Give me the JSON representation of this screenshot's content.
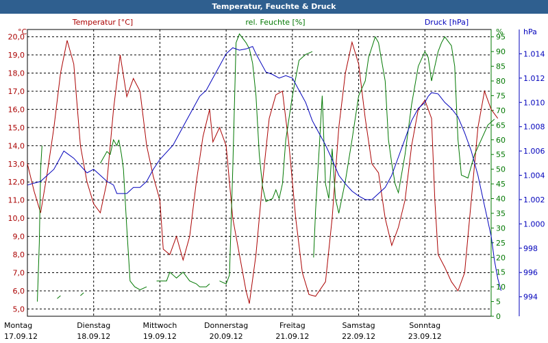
{
  "chart_data": {
    "type": "line",
    "title": "Temperatur, Feuchte & Druck",
    "legend": {
      "temperature": "Temperatur [°C]",
      "humidity": "rel. Feuchte [%]",
      "pressure": "Druck [hPa]"
    },
    "units": {
      "temperature": "°C",
      "humidity": "%",
      "pressure": "hPa"
    },
    "colors": {
      "temperature": "#aa0000",
      "humidity": "#007700",
      "pressure": "#0000bb",
      "grid": "#000000",
      "title_bg": "#2f5f8f"
    },
    "x_range": [
      0,
      7
    ],
    "days": [
      {
        "day": "Montag",
        "date": "17.09.12"
      },
      {
        "day": "Dienstag",
        "date": "18.09.12"
      },
      {
        "day": "Mittwoch",
        "date": "19.09.12"
      },
      {
        "day": "Donnerstag",
        "date": "20.09.12"
      },
      {
        "day": "Freitag",
        "date": "21.09.12"
      },
      {
        "day": "Samstag",
        "date": "22.09.12"
      },
      {
        "day": "Sonntag",
        "date": "23.09.12"
      }
    ],
    "y_left": {
      "min": 4.6,
      "max": 20.4,
      "ticks": [
        "5,0",
        "6,0",
        "7,0",
        "8,0",
        "9,0",
        "10,0",
        "11,0",
        "12,0",
        "13,0",
        "14,0",
        "15,0",
        "16,0",
        "17,0",
        "18,0",
        "19,0",
        "20,0"
      ]
    },
    "y_right1": {
      "min": 0,
      "max": 97.5,
      "ticks": [
        "0",
        "5",
        "10",
        "15",
        "20",
        "25",
        "30",
        "35",
        "40",
        "45",
        "50",
        "55",
        "60",
        "65",
        "70",
        "75",
        "80",
        "85",
        "90",
        "95"
      ]
    },
    "y_right2": {
      "min": 992.4,
      "max": 1016.0,
      "ticks": [
        "994",
        "996",
        "998",
        "1.000",
        "1.002",
        "1.004",
        "1.006",
        "1.008",
        "1.010",
        "1.012",
        "1.014"
      ]
    },
    "series": [
      {
        "name": "Temperatur [°C]",
        "axis": "left",
        "points": [
          [
            0,
            13.0
          ],
          [
            0.1,
            11.5
          ],
          [
            0.2,
            10.3
          ],
          [
            0.3,
            12.5
          ],
          [
            0.4,
            15.0
          ],
          [
            0.5,
            18.0
          ],
          [
            0.6,
            19.8
          ],
          [
            0.7,
            18.5
          ],
          [
            0.8,
            14.0
          ],
          [
            0.9,
            12.0
          ],
          [
            1.0,
            10.8
          ],
          [
            1.1,
            10.3
          ],
          [
            1.2,
            12.0
          ],
          [
            1.3,
            16.0
          ],
          [
            1.4,
            19.0
          ],
          [
            1.5,
            16.7
          ],
          [
            1.6,
            17.7
          ],
          [
            1.7,
            17.0
          ],
          [
            1.8,
            14.0
          ],
          [
            1.9,
            12.3
          ],
          [
            2.0,
            11.0
          ],
          [
            2.05,
            8.3
          ],
          [
            2.15,
            8.0
          ],
          [
            2.25,
            9.0
          ],
          [
            2.35,
            7.7
          ],
          [
            2.45,
            9.0
          ],
          [
            2.55,
            12.0
          ],
          [
            2.65,
            14.5
          ],
          [
            2.75,
            16.0
          ],
          [
            2.8,
            14.2
          ],
          [
            2.9,
            15.0
          ],
          [
            3.0,
            14.0
          ],
          [
            3.1,
            10.0
          ],
          [
            3.2,
            8.0
          ],
          [
            3.3,
            6.0
          ],
          [
            3.35,
            5.3
          ],
          [
            3.45,
            8.0
          ],
          [
            3.55,
            12.0
          ],
          [
            3.65,
            15.5
          ],
          [
            3.75,
            16.8
          ],
          [
            3.85,
            17.0
          ],
          [
            3.95,
            14.0
          ],
          [
            4.05,
            10.0
          ],
          [
            4.15,
            7.0
          ],
          [
            4.25,
            5.8
          ],
          [
            4.35,
            5.7
          ],
          [
            4.5,
            6.5
          ],
          [
            4.6,
            10.0
          ],
          [
            4.7,
            15.0
          ],
          [
            4.8,
            18.0
          ],
          [
            4.9,
            19.7
          ],
          [
            5.0,
            18.5
          ],
          [
            5.1,
            15.5
          ],
          [
            5.2,
            13.0
          ],
          [
            5.3,
            12.5
          ],
          [
            5.4,
            10.0
          ],
          [
            5.5,
            8.5
          ],
          [
            5.6,
            9.5
          ],
          [
            5.7,
            11.0
          ],
          [
            5.8,
            14.0
          ],
          [
            5.9,
            16.0
          ],
          [
            6.0,
            16.5
          ],
          [
            6.1,
            15.5
          ],
          [
            6.15,
            11.0
          ],
          [
            6.2,
            8.0
          ],
          [
            6.3,
            7.3
          ],
          [
            6.4,
            6.5
          ],
          [
            6.5,
            6.0
          ],
          [
            6.6,
            7.0
          ],
          [
            6.7,
            11.0
          ],
          [
            6.8,
            15.0
          ],
          [
            6.9,
            17.0
          ],
          [
            7.0,
            16.0
          ],
          [
            7.1,
            15.5
          ]
        ]
      },
      {
        "name": "rel. Feuchte [%]",
        "axis": "right1",
        "segments": [
          [
            [
              0.15,
              5
            ],
            [
              0.18,
              25
            ],
            [
              0.2,
              50
            ],
            [
              0.22,
              58
            ]
          ],
          [
            [
              0.45,
              6
            ],
            [
              0.5,
              7
            ]
          ],
          [
            [
              0.8,
              7
            ],
            [
              0.85,
              8
            ]
          ],
          [
            [
              1.1,
              52
            ],
            [
              1.2,
              56
            ],
            [
              1.25,
              55
            ],
            [
              1.3,
              60
            ],
            [
              1.35,
              58
            ],
            [
              1.38,
              60
            ],
            [
              1.42,
              55
            ],
            [
              1.45,
              50
            ],
            [
              1.5,
              30
            ],
            [
              1.55,
              12
            ],
            [
              1.62,
              10
            ],
            [
              1.7,
              9
            ],
            [
              1.8,
              10
            ]
          ],
          [
            [
              1.95,
              12
            ],
            [
              2.1,
              12
            ],
            [
              2.15,
              15
            ],
            [
              2.25,
              13
            ],
            [
              2.35,
              15
            ],
            [
              2.45,
              12
            ],
            [
              2.55,
              11
            ],
            [
              2.6,
              10
            ],
            [
              2.7,
              10
            ],
            [
              2.75,
              11
            ]
          ],
          [
            [
              2.9,
              12
            ],
            [
              3.0,
              11
            ],
            [
              3.05,
              14
            ],
            [
              3.1,
              50
            ],
            [
              3.15,
              93
            ],
            [
              3.2,
              96
            ],
            [
              3.3,
              93
            ],
            [
              3.35,
              91
            ],
            [
              3.4,
              86
            ],
            [
              3.45,
              75
            ],
            [
              3.5,
              55
            ],
            [
              3.55,
              44
            ],
            [
              3.6,
              39
            ],
            [
              3.7,
              40
            ],
            [
              3.75,
              43
            ],
            [
              3.8,
              40
            ],
            [
              3.85,
              45
            ],
            [
              3.9,
              60
            ],
            [
              4.0,
              75
            ],
            [
              4.1,
              87
            ],
            [
              4.2,
              89
            ],
            [
              4.3,
              90
            ]
          ],
          [
            [
              4.32,
              20
            ],
            [
              4.35,
              36
            ],
            [
              4.4,
              55
            ],
            [
              4.45,
              75
            ],
            [
              4.5,
              45
            ],
            [
              4.55,
              40
            ],
            [
              4.6,
              57
            ],
            [
              4.65,
              40
            ],
            [
              4.7,
              35
            ],
            [
              4.8,
              46
            ],
            [
              4.9,
              60
            ],
            [
              5.0,
              75
            ],
            [
              5.1,
              80
            ],
            [
              5.15,
              88
            ],
            [
              5.25,
              95
            ],
            [
              5.3,
              93
            ],
            [
              5.4,
              80
            ],
            [
              5.45,
              60
            ],
            [
              5.5,
              52
            ],
            [
              5.55,
              45
            ],
            [
              5.6,
              42
            ],
            [
              5.7,
              55
            ],
            [
              5.8,
              72
            ],
            [
              5.9,
              85
            ],
            [
              6.0,
              90
            ],
            [
              6.05,
              88
            ],
            [
              6.1,
              80
            ],
            [
              6.2,
              90
            ],
            [
              6.25,
              93
            ],
            [
              6.3,
              95
            ],
            [
              6.4,
              92
            ],
            [
              6.45,
              85
            ],
            [
              6.5,
              60
            ],
            [
              6.55,
              48
            ],
            [
              6.65,
              47
            ],
            [
              6.75,
              55
            ],
            [
              6.85,
              60
            ],
            [
              6.95,
              65
            ],
            [
              7.05,
              67
            ]
          ]
        ]
      },
      {
        "name": "Druck [hPa]",
        "axis": "right2",
        "points": [
          [
            0,
            1003.2
          ],
          [
            0.2,
            1003.5
          ],
          [
            0.4,
            1004.5
          ],
          [
            0.5,
            1005.5
          ],
          [
            0.55,
            1006.0
          ],
          [
            0.6,
            1005.8
          ],
          [
            0.7,
            1005.4
          ],
          [
            0.8,
            1004.8
          ],
          [
            0.9,
            1004.2
          ],
          [
            1.0,
            1004.5
          ],
          [
            1.1,
            1004.0
          ],
          [
            1.2,
            1003.5
          ],
          [
            1.3,
            1003.2
          ],
          [
            1.35,
            1002.5
          ],
          [
            1.5,
            1002.5
          ],
          [
            1.6,
            1003.0
          ],
          [
            1.7,
            1003.0
          ],
          [
            1.8,
            1003.5
          ],
          [
            1.9,
            1004.5
          ],
          [
            2.0,
            1005.3
          ],
          [
            2.2,
            1006.5
          ],
          [
            2.3,
            1007.5
          ],
          [
            2.4,
            1008.5
          ],
          [
            2.5,
            1009.5
          ],
          [
            2.6,
            1010.5
          ],
          [
            2.7,
            1011.0
          ],
          [
            2.8,
            1012.0
          ],
          [
            2.9,
            1013.0
          ],
          [
            3.0,
            1014.0
          ],
          [
            3.1,
            1014.5
          ],
          [
            3.2,
            1014.3
          ],
          [
            3.3,
            1014.4
          ],
          [
            3.4,
            1014.6
          ],
          [
            3.45,
            1014.0
          ],
          [
            3.5,
            1013.5
          ],
          [
            3.6,
            1012.5
          ],
          [
            3.7,
            1012.3
          ],
          [
            3.8,
            1012.0
          ],
          [
            3.9,
            1012.2
          ],
          [
            4.0,
            1012.0
          ],
          [
            4.1,
            1011.0
          ],
          [
            4.2,
            1010.0
          ],
          [
            4.3,
            1008.5
          ],
          [
            4.4,
            1007.5
          ],
          [
            4.5,
            1006.5
          ],
          [
            4.6,
            1005.3
          ],
          [
            4.7,
            1004.0
          ],
          [
            4.8,
            1003.3
          ],
          [
            4.9,
            1002.7
          ],
          [
            5.0,
            1002.3
          ],
          [
            5.1,
            1002.0
          ],
          [
            5.2,
            1002.0
          ],
          [
            5.3,
            1002.5
          ],
          [
            5.4,
            1003.0
          ],
          [
            5.5,
            1004.0
          ],
          [
            5.6,
            1005.5
          ],
          [
            5.7,
            1007.0
          ],
          [
            5.8,
            1008.5
          ],
          [
            5.9,
            1009.5
          ],
          [
            6.0,
            1010.0
          ],
          [
            6.05,
            1010.5
          ],
          [
            6.1,
            1010.8
          ],
          [
            6.2,
            1010.7
          ],
          [
            6.3,
            1010.0
          ],
          [
            6.4,
            1009.5
          ],
          [
            6.5,
            1008.8
          ],
          [
            6.6,
            1007.5
          ],
          [
            6.7,
            1006.0
          ],
          [
            6.8,
            1004.0
          ],
          [
            6.9,
            1001.5
          ],
          [
            7.0,
            999.0
          ],
          [
            7.05,
            997.0
          ],
          [
            7.1,
            995.5
          ],
          [
            7.15,
            994.5
          ]
        ]
      }
    ]
  }
}
